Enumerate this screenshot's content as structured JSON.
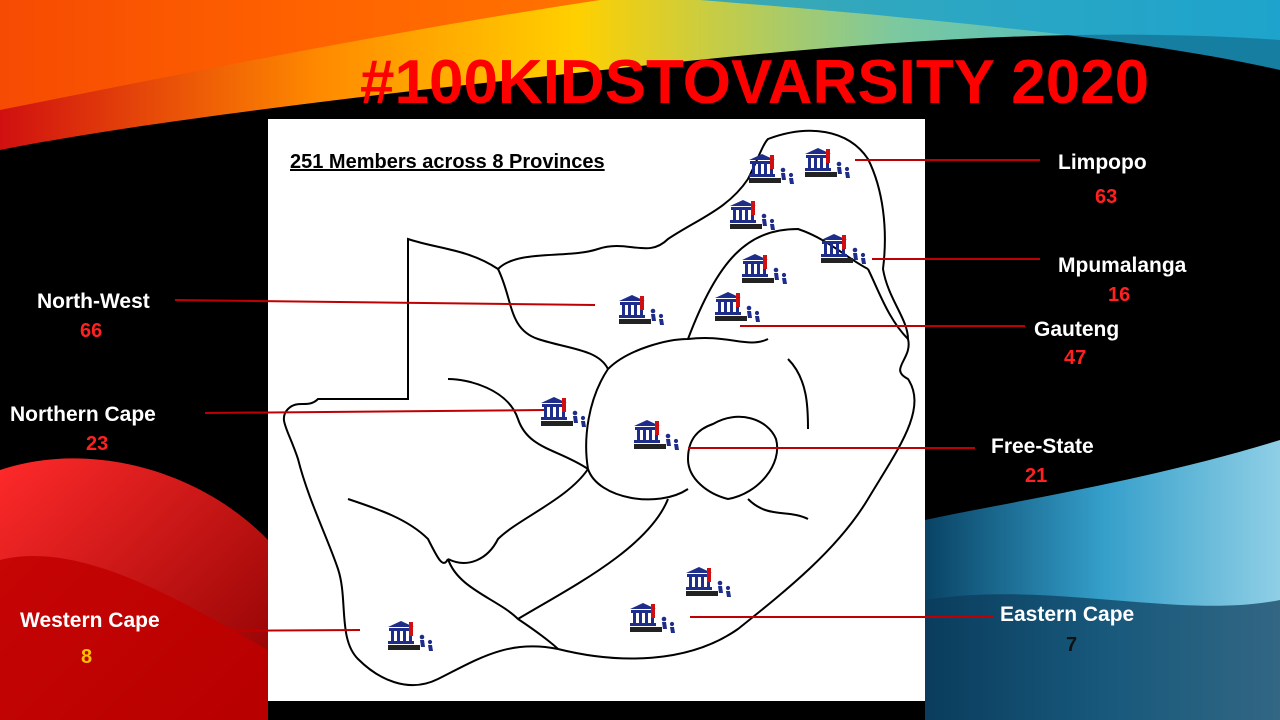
{
  "slide": {
    "title": "#100KIDSTOVARSITY 2020",
    "subtitle": "251 Members across 8 Provinces",
    "colors": {
      "title": "#ff0000",
      "count_red": "#ff2020",
      "count_gold": "#ffc000",
      "count_dark": "#111111",
      "leader_line": "#c00000"
    }
  },
  "provinces": [
    {
      "name": "Limpopo",
      "count": "63"
    },
    {
      "name": "Mpumalanga",
      "count": "16"
    },
    {
      "name": "Gauteng",
      "count": "47"
    },
    {
      "name": "North-West",
      "count": "66"
    },
    {
      "name": "Northern Cape",
      "count": "23"
    },
    {
      "name": "Free-State",
      "count": "21"
    },
    {
      "name": "Western Cape",
      "count": "8"
    },
    {
      "name": "Eastern Cape",
      "count": "7"
    }
  ],
  "marker_icon": "university-building-with-students-icon"
}
